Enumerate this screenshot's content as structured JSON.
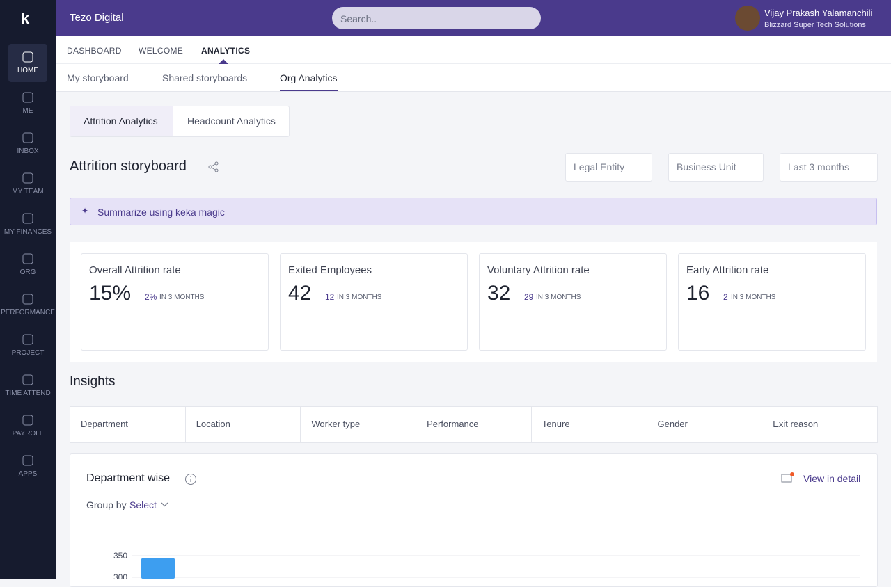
{
  "header": {
    "org": "Tezo Digital",
    "search_placeholder": "Search..",
    "user_name": "Vijay Prakash Yalamanchili",
    "user_company": "Blizzard Super Tech Solutions"
  },
  "sidebar": [
    "HOME",
    "ME",
    "INBOX",
    "MY TEAM",
    "MY FINANCES",
    "ORG",
    "PERFORMANCE",
    "PROJECT",
    "TIME ATTEND",
    "PAYROLL",
    "APPS"
  ],
  "tabs": [
    "DASHBOARD",
    "WELCOME",
    "ANALYTICS"
  ],
  "subtabs": [
    "My storyboard",
    "Shared storyboards",
    "Org Analytics"
  ],
  "analytics_tabs": [
    "Attrition Analytics",
    "Headcount Analytics"
  ],
  "storyboard": {
    "title": "Attrition storyboard",
    "filters": [
      "Legal Entity",
      "Business Unit",
      "Last 3 months"
    ],
    "summarize": "Summarize using keka magic"
  },
  "kpis": [
    {
      "title": "Overall Attrition rate",
      "value": "15%",
      "change": "2%",
      "period": "IN 3 MONTHS"
    },
    {
      "title": "Exited Employees",
      "value": "42",
      "change": "12",
      "period": "IN 3 MONTHS"
    },
    {
      "title": "Voluntary Attrition rate",
      "value": "32",
      "change": "29",
      "period": "IN 3 MONTHS"
    },
    {
      "title": "Early Attrition rate",
      "value": "16",
      "change": "2",
      "period": "IN 3 MONTHS"
    }
  ],
  "insights": {
    "title": "Insights",
    "filters": [
      "Department",
      "Location",
      "Worker type",
      "Performance",
      "Tenure",
      "Gender",
      "Exit reason"
    ]
  },
  "department": {
    "title": "Department wise",
    "view_detail": "View in detail",
    "group_by": "Group by",
    "select": "Select",
    "chart": {
      "yticks": [
        350,
        300
      ],
      "values": [
        344
      ],
      "color": "#3d9ef0"
    }
  }
}
